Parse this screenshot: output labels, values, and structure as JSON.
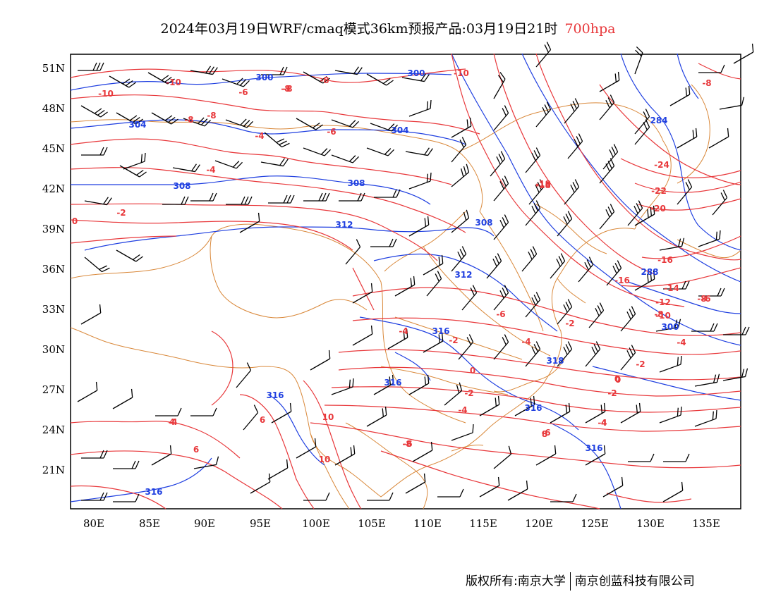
{
  "title": {
    "main": "2024年03月19日WRF/cmaq模式36km预报产品:03月19日21时",
    "level": "700hpa",
    "level_color": "#e8383b"
  },
  "axes": {
    "x_ticks": [
      "80E",
      "85E",
      "90E",
      "95E",
      "100E",
      "105E",
      "110E",
      "115E",
      "120E",
      "125E",
      "130E",
      "135E"
    ],
    "y_ticks": [
      "51N",
      "48N",
      "45N",
      "42N",
      "39N",
      "36N",
      "33N",
      "30N",
      "27N",
      "24N",
      "21N"
    ]
  },
  "legend_colors": {
    "temperature_contours": "#e8383b",
    "geopotential_height_contours": "#1f3fe0",
    "borders": "#d9883a",
    "wind_barbs": "#000000"
  },
  "geopotential_labels": [
    "300",
    "300",
    "304",
    "304",
    "308",
    "308",
    "312",
    "308",
    "312",
    "316",
    "316",
    "316",
    "316",
    "284",
    "288",
    "300",
    "318",
    "316"
  ],
  "temperature_labels": [
    "-10",
    "-10",
    "-8",
    "-6",
    "-8",
    "-8",
    "-8",
    "-6",
    "-4",
    "-4",
    "-2",
    "0",
    "-10",
    "-8",
    "-8",
    "-24",
    "-22",
    "-20",
    "-18",
    "-16",
    "-14",
    "-16",
    "-12",
    "-10",
    "-8",
    "-4",
    "-2",
    "0",
    "-2",
    "-4",
    "-6",
    "-4",
    "-2",
    "0",
    "-2",
    "-2",
    "-4",
    "-4",
    "-6",
    "-8",
    "-6",
    "-8",
    "-6",
    "-4",
    "6",
    "10",
    "10",
    "8",
    "6",
    "4",
    "4",
    "0",
    "-18"
  ],
  "credit": {
    "left": "版权所有:南京大学",
    "right": "南京创蓝科技有限公司"
  }
}
